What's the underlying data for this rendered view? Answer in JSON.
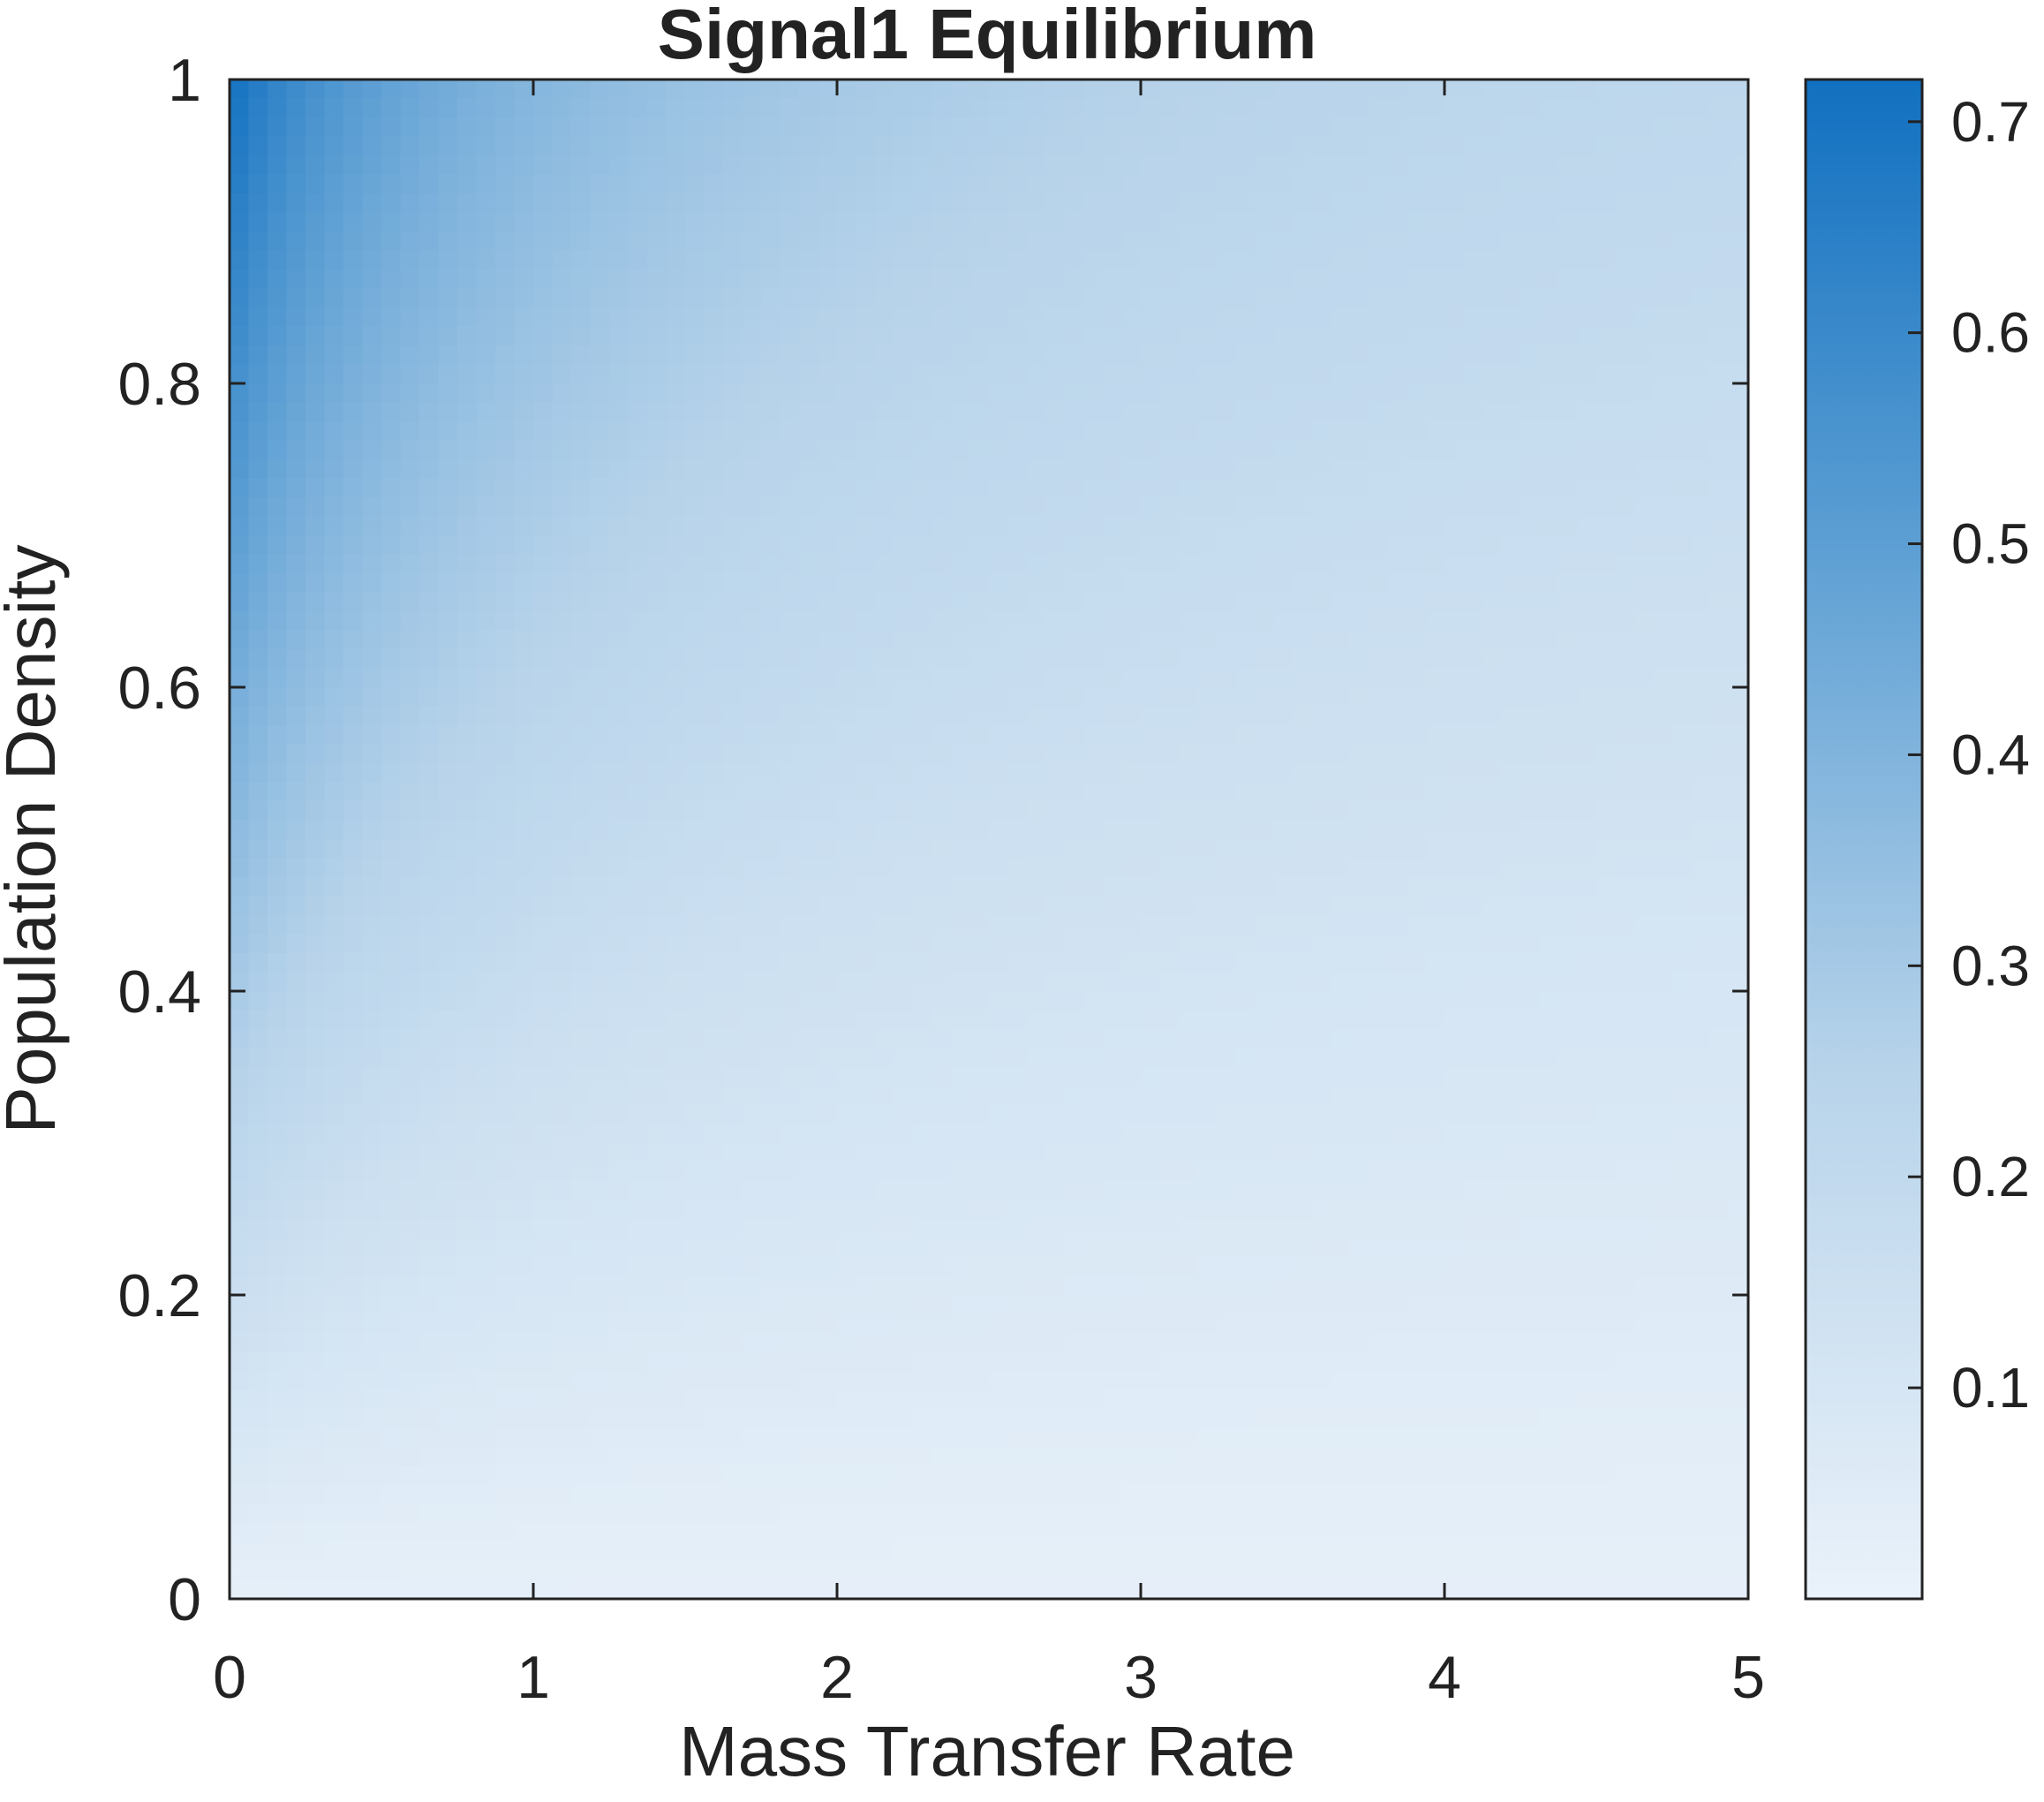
{
  "chart_data": {
    "type": "heatmap",
    "title": "Signal1 Equilibrium",
    "xlabel": "Mass Transfer Rate",
    "ylabel": "Population Density",
    "xlim": [
      0,
      5
    ],
    "ylim": [
      0,
      1
    ],
    "x_ticks": [
      "0",
      "1",
      "2",
      "3",
      "4",
      "5"
    ],
    "x_tick_values": [
      0,
      1,
      2,
      3,
      4,
      5
    ],
    "y_ticks": [
      "0",
      "0.2",
      "0.4",
      "0.6",
      "0.8",
      "1"
    ],
    "y_tick_values": [
      0,
      0.2,
      0.4,
      0.6,
      0.8,
      1
    ],
    "colorbar": {
      "range": [
        0,
        0.72
      ],
      "ticks": [
        "0.1",
        "0.2",
        "0.3",
        "0.4",
        "0.5",
        "0.6",
        "0.7"
      ],
      "tick_values": [
        0.1,
        0.2,
        0.3,
        0.4,
        0.5,
        0.6,
        0.7
      ],
      "color_low": "#eaf2fa",
      "color_high": "#1170c0"
    },
    "grid": false,
    "sample_values": [
      {
        "x": 0,
        "y": 1,
        "value": 0.72
      },
      {
        "x": 0,
        "y": 0.8,
        "value": 0.45
      },
      {
        "x": 0,
        "y": 0.6,
        "value": 0.3
      },
      {
        "x": 0,
        "y": 0.4,
        "value": 0.17
      },
      {
        "x": 0,
        "y": 0.2,
        "value": 0.09
      },
      {
        "x": 1,
        "y": 1,
        "value": 0.34
      },
      {
        "x": 2,
        "y": 1,
        "value": 0.24
      },
      {
        "x": 3,
        "y": 1,
        "value": 0.19
      },
      {
        "x": 5,
        "y": 1,
        "value": 0.14
      },
      {
        "x": 5,
        "y": 0.5,
        "value": 0.07
      },
      {
        "x": 5,
        "y": 0,
        "value": 0.02
      }
    ]
  }
}
